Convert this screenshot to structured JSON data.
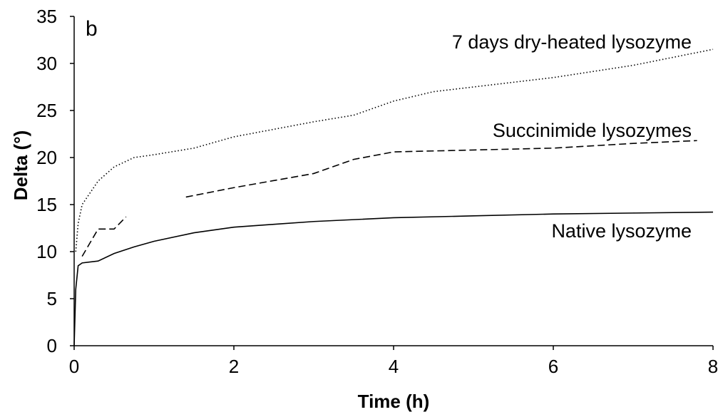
{
  "chart_data": {
    "type": "line",
    "panel_label": "b",
    "x_label": "Time (h)",
    "y_label": "Delta (°)",
    "xlim": [
      0,
      8
    ],
    "ylim": [
      0,
      35
    ],
    "xticks": [
      0,
      2,
      4,
      6,
      8
    ],
    "yticks": [
      0,
      5,
      10,
      15,
      20,
      25,
      30,
      35
    ],
    "series": [
      {
        "name": "7 days dry-heated lysozyme",
        "color": "#000000",
        "style": "dotted",
        "x": [
          0.02,
          0.05,
          0.1,
          0.3,
          0.5,
          0.75,
          1,
          1.5,
          2,
          2.5,
          3,
          3.5,
          4,
          4.5,
          5,
          6,
          7,
          8
        ],
        "values": [
          10,
          13,
          15,
          17.5,
          19,
          20,
          20.3,
          21,
          22.2,
          23,
          23.8,
          24.5,
          26,
          27,
          27.5,
          28.5,
          29.8,
          31.5
        ]
      },
      {
        "name": "Succinimide lysozymes",
        "color": "#000000",
        "style": "dashed",
        "x": [
          0.1,
          0.3,
          0.5,
          0.65,
          1,
          1.4,
          2,
          3,
          3.5,
          4,
          5,
          6,
          7,
          7.8
        ],
        "values": [
          9.5,
          12.4,
          12.4,
          13.7,
          null,
          15.8,
          16.8,
          18.3,
          19.8,
          20.6,
          20.8,
          21,
          21.5,
          21.8
        ]
      },
      {
        "name": "Native lysozyme",
        "color": "#000000",
        "style": "solid",
        "x": [
          0,
          0.02,
          0.05,
          0.1,
          0.3,
          0.5,
          0.75,
          1,
          1.5,
          2,
          2.5,
          3,
          4,
          5,
          6,
          7,
          8
        ],
        "values": [
          0,
          6,
          8.5,
          8.8,
          9.0,
          9.8,
          10.5,
          11.1,
          12.0,
          12.6,
          12.9,
          13.2,
          13.6,
          13.8,
          14.0,
          14.1,
          14.2
        ]
      }
    ]
  }
}
